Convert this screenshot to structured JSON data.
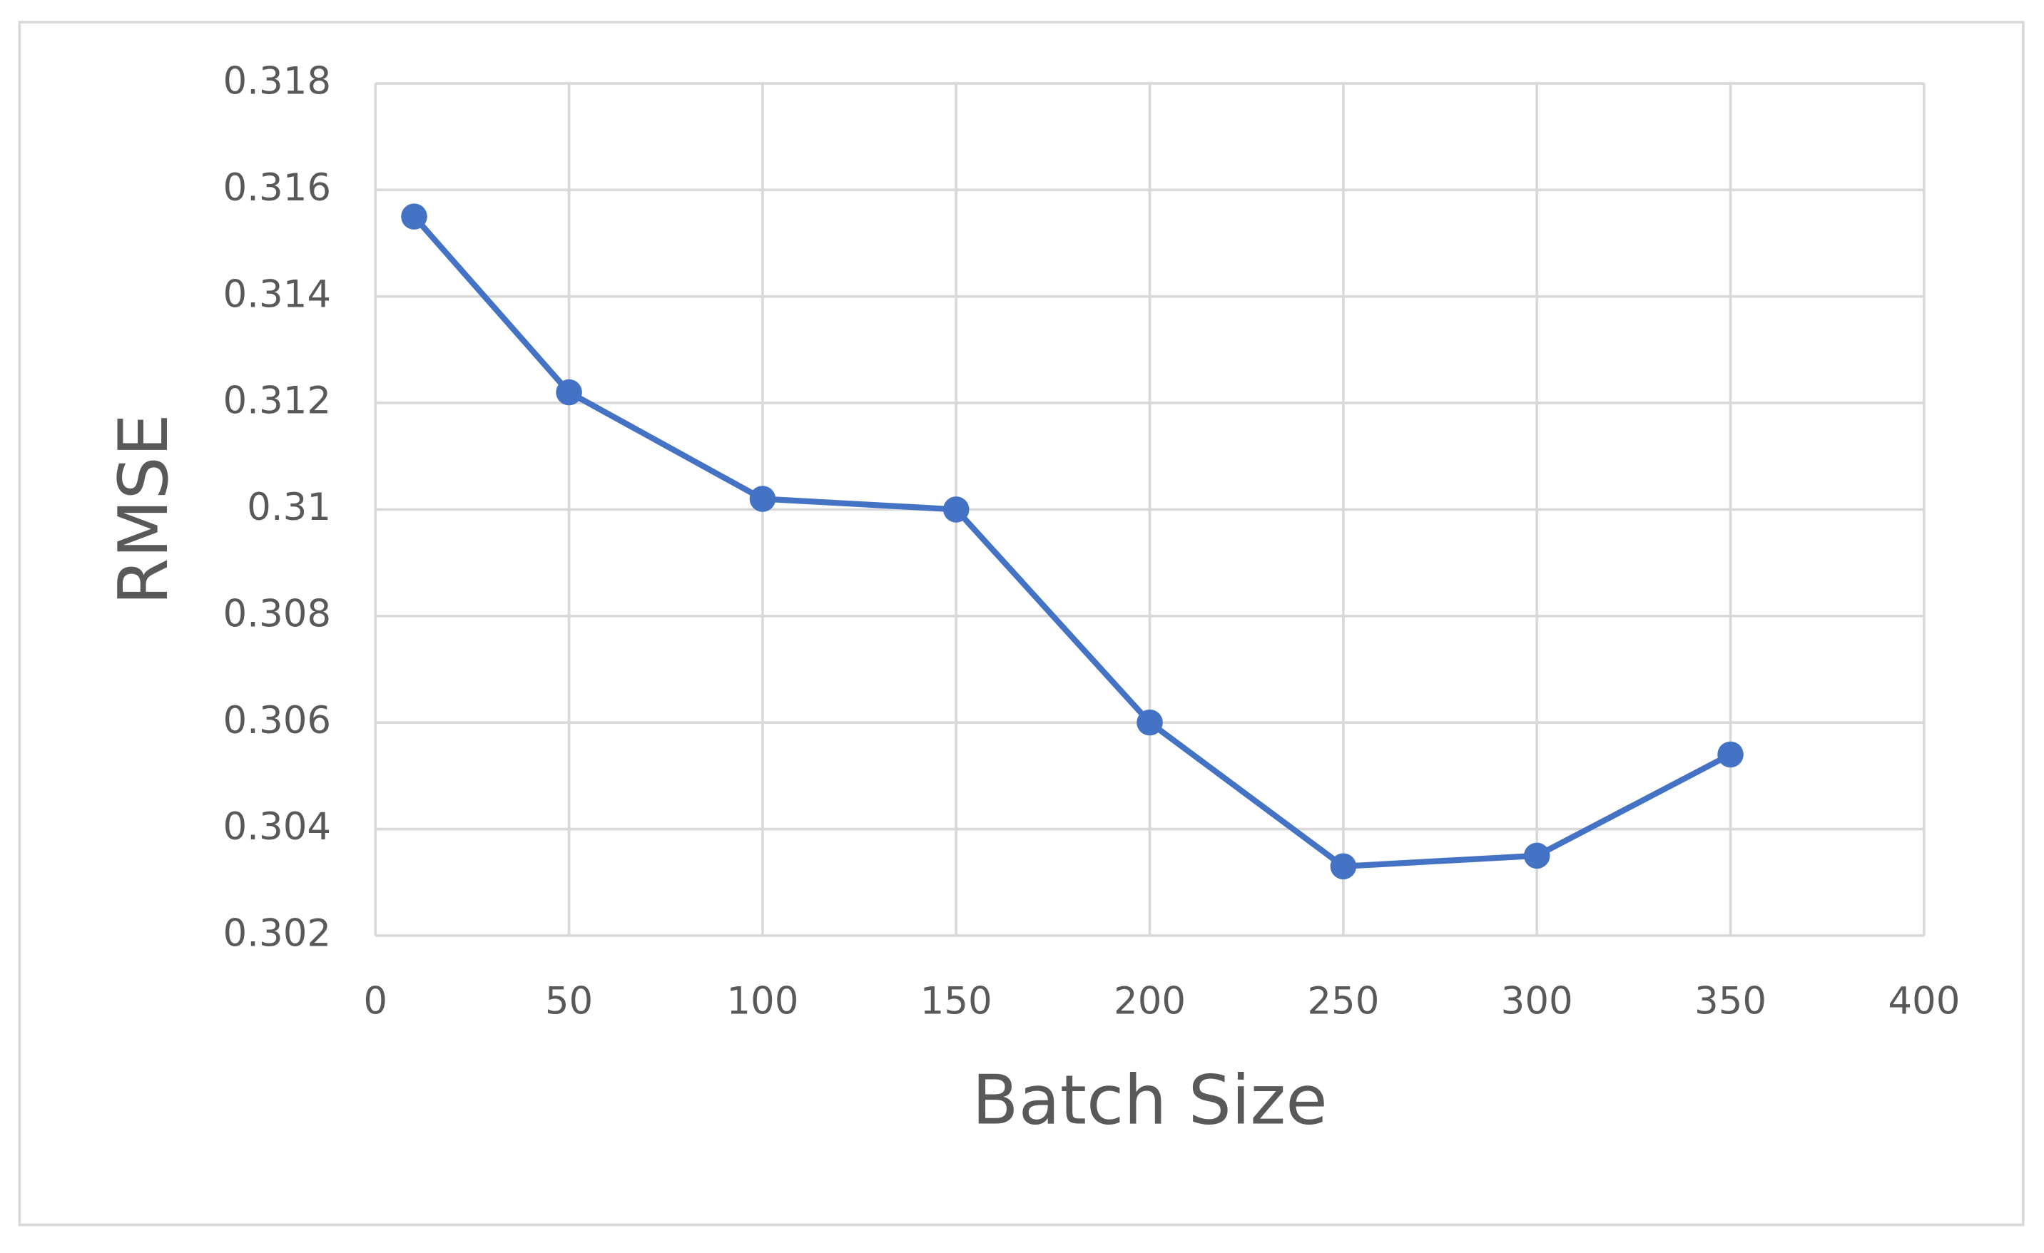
{
  "chart_data": {
    "type": "line",
    "x_label": "Batch Size",
    "y_label": "RMSE",
    "x": [
      10,
      50,
      100,
      150,
      200,
      250,
      300,
      350
    ],
    "values": [
      0.3155,
      0.3122,
      0.3102,
      0.31,
      0.306,
      0.3033,
      0.3035,
      0.3054
    ],
    "color": "#4472c4",
    "xlim": [
      0,
      400
    ],
    "xticks": [
      0,
      50,
      100,
      150,
      200,
      250,
      300,
      350,
      400
    ],
    "ylim": [
      0.302,
      0.318
    ],
    "yticks": [
      0.302,
      0.304,
      0.306,
      0.308,
      0.31,
      0.312,
      0.314,
      0.316,
      0.318
    ],
    "grid": true
  }
}
